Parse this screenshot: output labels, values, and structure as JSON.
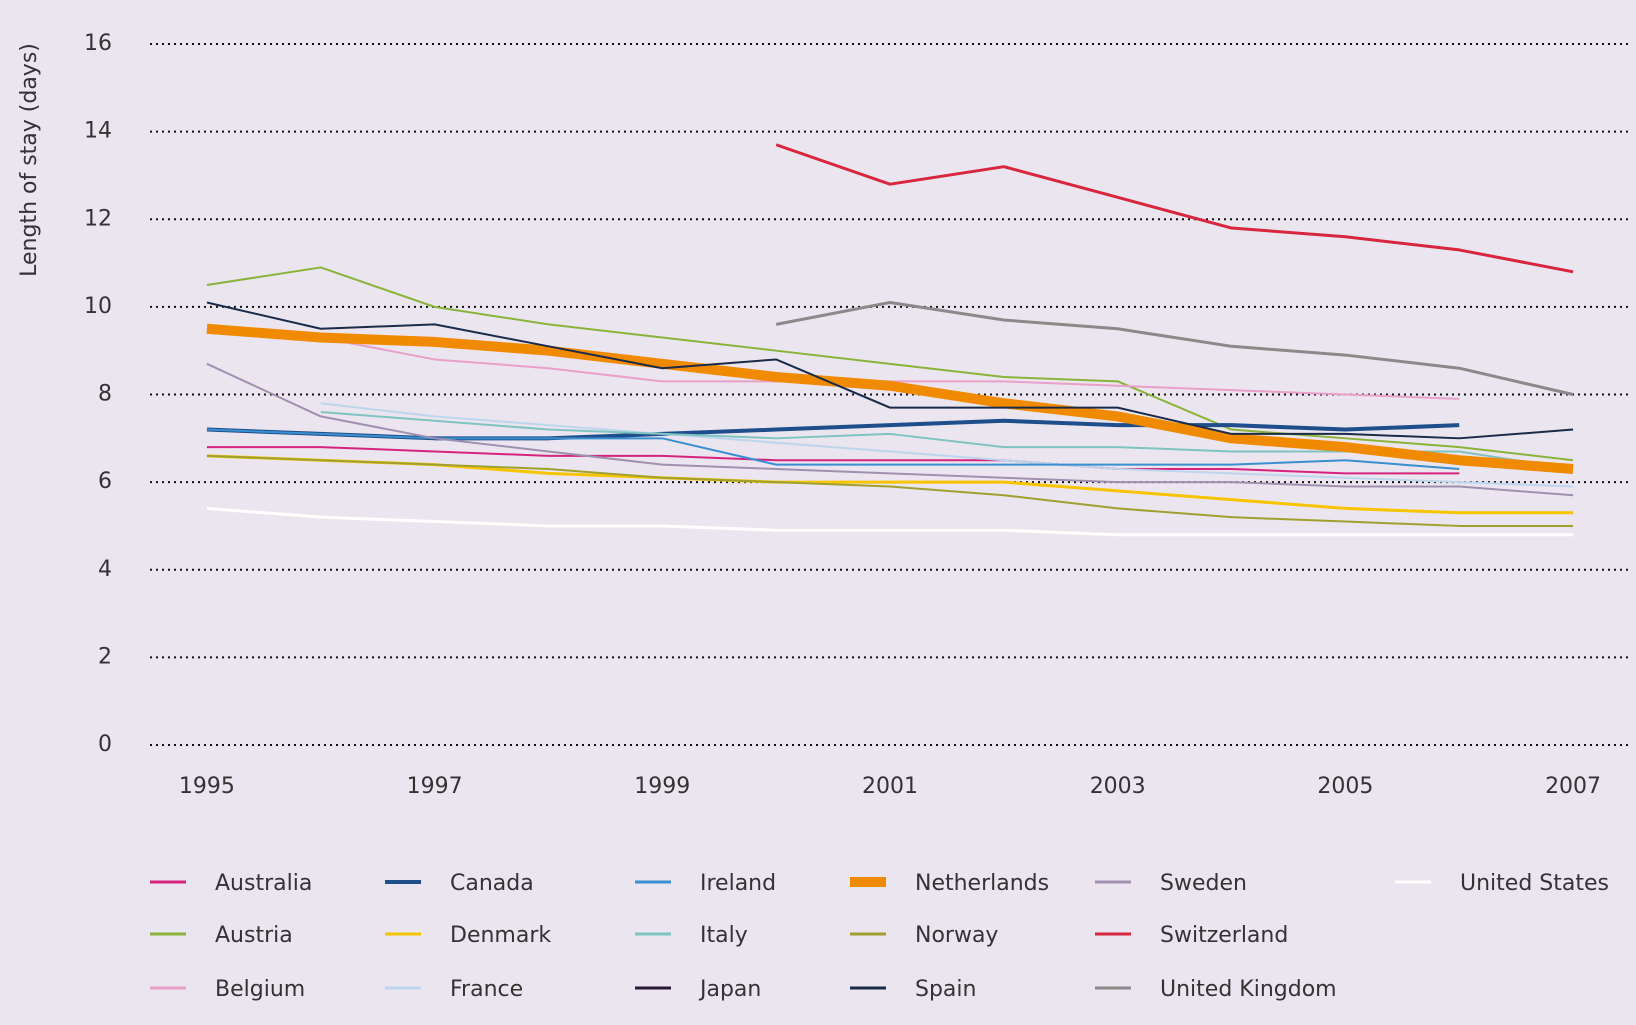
{
  "chart_data": {
    "type": "line",
    "y_label": "Length of stay (days)",
    "x": [
      1995,
      1996,
      1997,
      1998,
      1999,
      2000,
      2001,
      2002,
      2003,
      2004,
      2005,
      2006,
      2007
    ],
    "xlim": [
      1994.5,
      2007.5
    ],
    "xticks": [
      1995,
      1997,
      1999,
      2001,
      2003,
      2005,
      2007
    ],
    "ylim": [
      0,
      16
    ],
    "yticks": [
      0,
      2,
      4,
      6,
      8,
      10,
      12,
      14,
      16
    ],
    "grid": true,
    "series": [
      {
        "name": "Australia",
        "color": "#d6247e",
        "line_width": 2,
        "values": [
          6.8,
          6.8,
          6.7,
          6.6,
          6.6,
          6.5,
          6.5,
          6.5,
          6.3,
          6.3,
          6.2,
          6.2,
          null
        ]
      },
      {
        "name": "Austria",
        "color": "#8ab33a",
        "line_width": 2,
        "values": [
          10.5,
          10.9,
          10.0,
          9.6,
          9.3,
          9.0,
          8.7,
          8.4,
          8.3,
          7.2,
          7.0,
          6.8,
          6.5
        ]
      },
      {
        "name": "Belgium",
        "color": "#e8a0c8",
        "line_width": 2,
        "values": [
          9.5,
          9.3,
          8.8,
          8.6,
          8.3,
          8.3,
          8.3,
          8.3,
          8.2,
          8.1,
          8.0,
          7.9,
          null
        ]
      },
      {
        "name": "Canada",
        "color": "#1f4e8c",
        "line_width": 4,
        "values": [
          7.2,
          7.1,
          7.0,
          7.0,
          7.1,
          7.2,
          7.3,
          7.4,
          7.3,
          7.3,
          7.2,
          7.3,
          null
        ]
      },
      {
        "name": "Denmark",
        "color": "#f6c400",
        "line_width": 3,
        "values": [
          6.6,
          6.5,
          6.4,
          6.2,
          6.1,
          6.0,
          6.0,
          6.0,
          5.8,
          5.6,
          5.4,
          5.3,
          5.3
        ]
      },
      {
        "name": "France",
        "color": "#bcd6ee",
        "line_width": 2,
        "values": [
          null,
          7.8,
          7.5,
          7.3,
          7.1,
          6.9,
          6.7,
          6.5,
          6.3,
          6.2,
          6.1,
          6.0,
          5.9
        ]
      },
      {
        "name": "Ireland",
        "color": "#3a8fd0",
        "line_width": 2,
        "values": [
          7.2,
          7.1,
          7.0,
          7.0,
          7.0,
          6.4,
          6.4,
          6.4,
          6.4,
          6.4,
          6.5,
          6.3,
          null
        ]
      },
      {
        "name": "Italy",
        "color": "#7fc4c0",
        "line_width": 2,
        "values": [
          null,
          7.6,
          7.4,
          7.2,
          7.1,
          7.0,
          7.1,
          6.8,
          6.8,
          6.7,
          6.7,
          6.7,
          6.3
        ]
      },
      {
        "name": "Japan",
        "color": "#2a1a3a",
        "line_width": 2,
        "values": [
          null,
          null,
          null,
          null,
          null,
          null,
          null,
          null,
          null,
          null,
          null,
          null,
          null
        ]
      },
      {
        "name": "Netherlands",
        "color": "#f08a00",
        "line_width": 10,
        "values": [
          9.5,
          9.3,
          9.2,
          9.0,
          8.7,
          8.4,
          8.2,
          7.8,
          7.5,
          7.0,
          6.8,
          6.5,
          6.3
        ]
      },
      {
        "name": "Norway",
        "color": "#a0a030",
        "line_width": 2,
        "values": [
          6.6,
          6.5,
          6.4,
          6.3,
          6.1,
          6.0,
          5.9,
          5.7,
          5.4,
          5.2,
          5.1,
          5.0,
          5.0
        ]
      },
      {
        "name": "Spain",
        "color": "#1a2b4a",
        "line_width": 2,
        "values": [
          10.1,
          9.5,
          9.6,
          9.1,
          8.6,
          8.8,
          7.7,
          7.7,
          7.7,
          7.1,
          7.1,
          7.0,
          7.2
        ]
      },
      {
        "name": "Sweden",
        "color": "#a090b0",
        "line_width": 2,
        "values": [
          8.7,
          7.5,
          7.0,
          6.7,
          6.4,
          6.3,
          6.2,
          6.1,
          6.0,
          6.0,
          5.9,
          5.9,
          5.7
        ]
      },
      {
        "name": "Switzerland",
        "color": "#d7263d",
        "line_width": 3,
        "values": [
          null,
          null,
          null,
          null,
          null,
          13.7,
          12.8,
          13.2,
          12.5,
          11.8,
          11.6,
          11.3,
          10.8
        ]
      },
      {
        "name": "United Kingdom",
        "color": "#8a8a8a",
        "line_width": 3,
        "values": [
          null,
          null,
          null,
          null,
          null,
          9.6,
          10.1,
          9.7,
          9.5,
          9.1,
          8.9,
          8.6,
          8.0
        ]
      },
      {
        "name": "United States",
        "color": "#ffffff",
        "line_width": 3,
        "values": [
          5.4,
          5.2,
          5.1,
          5.0,
          5.0,
          4.9,
          4.9,
          4.9,
          4.8,
          4.8,
          4.8,
          4.8,
          4.8
        ]
      }
    ]
  }
}
